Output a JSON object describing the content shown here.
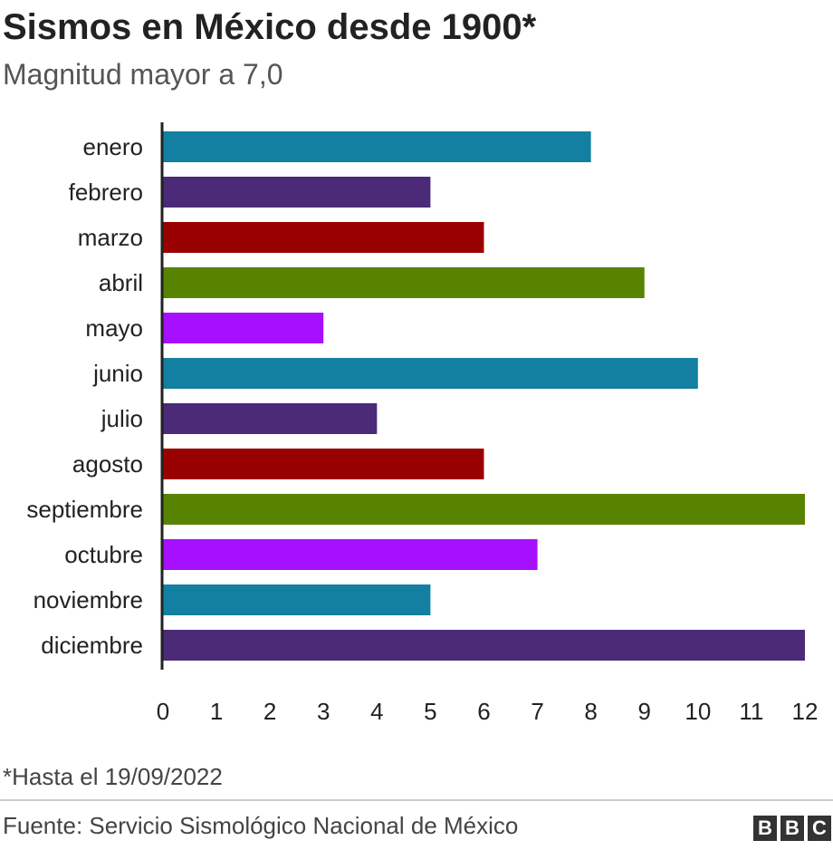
{
  "header": {
    "title": "Sismos en México desde 1900*",
    "subtitle": "Magnitud mayor a 7,0"
  },
  "chart_data": {
    "type": "bar",
    "orientation": "horizontal",
    "categories": [
      "enero",
      "febrero",
      "marzo",
      "abril",
      "mayo",
      "junio",
      "julio",
      "agosto",
      "septiembre",
      "octubre",
      "noviembre",
      "diciembre"
    ],
    "values": [
      8,
      5,
      6,
      9,
      3,
      10,
      4,
      6,
      12,
      7,
      5,
      12
    ],
    "colors": [
      "#1380a1",
      "#4b2a78",
      "#990000",
      "#588300",
      "#a70fff",
      "#1380a1",
      "#4b2a78",
      "#990000",
      "#588300",
      "#a70fff",
      "#1380a1",
      "#4b2a78"
    ],
    "xticks": [
      "0",
      "1",
      "2",
      "3",
      "4",
      "5",
      "6",
      "7",
      "8",
      "9",
      "10",
      "11",
      "12"
    ],
    "xlim": [
      0,
      12
    ],
    "grid": false
  },
  "footer": {
    "note": "*Hasta el 19/09/2022",
    "source": "Fuente: Servicio Sismológico Nacional de México",
    "logo_letters": [
      "B",
      "B",
      "C"
    ]
  }
}
